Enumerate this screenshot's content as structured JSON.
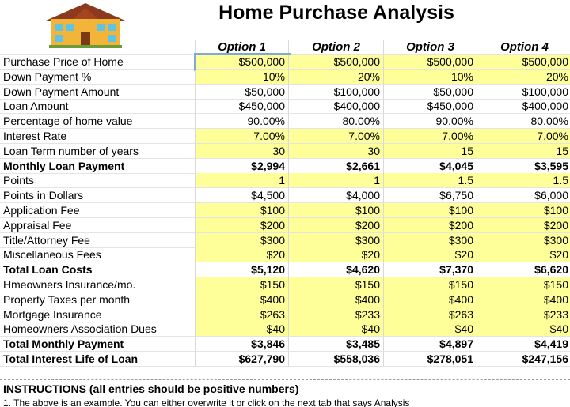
{
  "header": {
    "title": "Home Purchase Analysis"
  },
  "table": {
    "columns": [
      "Option 1",
      "Option 2",
      "Option 3",
      "Option 4"
    ],
    "rows": [
      {
        "label": "Purchase Price of Home",
        "values": [
          "$500,000",
          "$500,000",
          "$500,000",
          "$500,000"
        ]
      },
      {
        "label": "Down Payment %",
        "values": [
          "10%",
          "20%",
          "10%",
          "20%"
        ]
      },
      {
        "label": "Down Payment Amount",
        "values": [
          "$50,000",
          "$100,000",
          "$50,000",
          "$100,000"
        ]
      },
      {
        "label": "Loan Amount",
        "values": [
          "$450,000",
          "$400,000",
          "$450,000",
          "$400,000"
        ]
      },
      {
        "label": "Percentage of home value",
        "values": [
          "90.00%",
          "80.00%",
          "90.00%",
          "80.00%"
        ]
      },
      {
        "label": "Interest Rate",
        "values": [
          "7.00%",
          "7.00%",
          "7.00%",
          "7.00%"
        ]
      },
      {
        "label": "Loan Term number of years",
        "values": [
          "30",
          "30",
          "15",
          "15"
        ]
      },
      {
        "label": "Monthly Loan Payment",
        "values": [
          "$2,994",
          "$2,661",
          "$4,045",
          "$3,595"
        ]
      },
      {
        "label": "Points",
        "values": [
          "1",
          "1",
          "1.5",
          "1.5"
        ]
      },
      {
        "label": "Points in Dollars",
        "values": [
          "$4,500",
          "$4,000",
          "$6,750",
          "$6,000"
        ]
      },
      {
        "label": "Application Fee",
        "values": [
          "$100",
          "$100",
          "$100",
          "$100"
        ]
      },
      {
        "label": "Appraisal Fee",
        "values": [
          "$200",
          "$200",
          "$200",
          "$200"
        ]
      },
      {
        "label": "Title/Attorney Fee",
        "values": [
          "$300",
          "$300",
          "$300",
          "$300"
        ]
      },
      {
        "label": "Miscellaneous Fees",
        "values": [
          "$20",
          "$20",
          "$20",
          "$20"
        ]
      },
      {
        "label": "Total Loan Costs",
        "values": [
          "$5,120",
          "$4,620",
          "$7,370",
          "$6,620"
        ]
      },
      {
        "label": "Hmeowners Insurance/mo.",
        "values": [
          "$150",
          "$150",
          "$150",
          "$150"
        ]
      },
      {
        "label": "Property Taxes per month",
        "values": [
          "$400",
          "$400",
          "$400",
          "$400"
        ]
      },
      {
        "label": "Mortgage Insurance",
        "values": [
          "$263",
          "$233",
          "$263",
          "$233"
        ]
      },
      {
        "label": "Homeowners Association Dues",
        "values": [
          "$40",
          "$40",
          "$40",
          "$40"
        ]
      },
      {
        "label": "Total Monthly Payment",
        "values": [
          "$3,846",
          "$3,485",
          "$4,897",
          "$4,419"
        ]
      },
      {
        "label": "Total Interest Life of Loan",
        "values": [
          "$627,790",
          "$558,036",
          "$278,051",
          "$247,156"
        ]
      }
    ]
  },
  "instructions": {
    "heading": "INSTRUCTIONS (all entries should be positive numbers)",
    "lines": [
      "1. The above is an example. You can either overwrite it or click on the next tab that says Analysis"
    ]
  }
}
